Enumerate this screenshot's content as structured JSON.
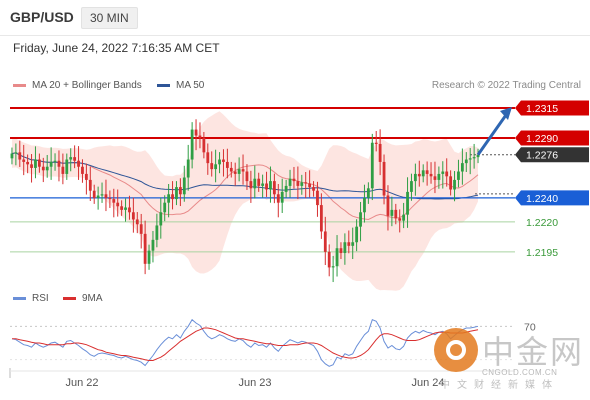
{
  "header": {
    "symbol": "GBP/USD",
    "timeframe": "30 MIN",
    "datetime": "Friday, June 24, 2022 7:16:35 AM CET"
  },
  "legend": {
    "ma20_bb": "MA 20 + Bollinger Bands",
    "ma50": "MA 50",
    "credit": "Research © 2022 Trading Central",
    "rsi": "RSI",
    "nine_ma": "9MA"
  },
  "colors": {
    "ma20": "#e88a8a",
    "ma50": "#2e5597",
    "bollinger_fill": "#fde2de",
    "resistance": "#d40000",
    "support": "#1a5fd6",
    "target": "#3a9a3a",
    "current_price": "#333333",
    "rsi_line": "#6a8fd8",
    "nine_ma_line": "#d92f2f",
    "arrow": "#2e66b2"
  },
  "watermark": {
    "big": "中金网",
    "url": "CNGOLD.COM.CN",
    "cn": "中文财经新媒体"
  },
  "chart_data": [
    {
      "type": "candlestick",
      "title": "GBP/USD",
      "timeframe": "30 MIN",
      "ylim": [
        1.2169,
        1.2325
      ],
      "xlabel": "",
      "ylabel": "",
      "x_ticks": [
        "Jun 22",
        "Jun 23",
        "Jun 24"
      ],
      "levels": [
        {
          "label": "1.2315",
          "value": 1.2315,
          "kind": "resistance"
        },
        {
          "label": "1.2290",
          "value": 1.229,
          "kind": "resistance"
        },
        {
          "label": "1.2276",
          "value": 1.2276,
          "kind": "current"
        },
        {
          "label": "1.2240",
          "value": 1.224,
          "kind": "pivot"
        },
        {
          "label": "1.2220",
          "value": 1.222,
          "kind": "target"
        },
        {
          "label": "1.2195",
          "value": 1.2195,
          "kind": "target"
        }
      ],
      "arrow": {
        "from": 1.2276,
        "to": 1.2315,
        "direction": "up"
      },
      "close": [
        1.2277,
        1.2278,
        1.2272,
        1.227,
        1.2268,
        1.2265,
        1.2272,
        1.2266,
        1.2263,
        1.2266,
        1.227,
        1.2271,
        1.2266,
        1.226,
        1.2272,
        1.2274,
        1.2271,
        1.2266,
        1.226,
        1.2255,
        1.2246,
        1.224,
        1.2242,
        1.2243,
        1.224,
        1.2239,
        1.2236,
        1.2233,
        1.223,
        1.2232,
        1.2228,
        1.2222,
        1.2218,
        1.221,
        1.2185,
        1.2196,
        1.2205,
        1.2217,
        1.2228,
        1.2236,
        1.2243,
        1.2239,
        1.2249,
        1.2243,
        1.2257,
        1.2272,
        1.2297,
        1.2292,
        1.229,
        1.2278,
        1.2269,
        1.2264,
        1.2268,
        1.2272,
        1.227,
        1.2265,
        1.2262,
        1.226,
        1.2264,
        1.2262,
        1.2254,
        1.2248,
        1.2256,
        1.225,
        1.2252,
        1.2247,
        1.2254,
        1.2243,
        1.2236,
        1.2245,
        1.225,
        1.2256,
        1.2254,
        1.225,
        1.2253,
        1.2252,
        1.2249,
        1.2246,
        1.2234,
        1.2212,
        1.2195,
        1.2182,
        1.2183,
        1.2198,
        1.2194,
        1.2203,
        1.22,
        1.2203,
        1.2216,
        1.2228,
        1.224,
        1.2248,
        1.2286,
        1.2285,
        1.227,
        1.2242,
        1.2225,
        1.223,
        1.2223,
        1.2221,
        1.2226,
        1.2245,
        1.2254,
        1.226,
        1.2258,
        1.2263,
        1.226,
        1.2258,
        1.2255,
        1.226,
        1.2262,
        1.2258,
        1.2247,
        1.2255,
        1.2262,
        1.2269,
        1.2272,
        1.2273,
        1.2274,
        1.2276
      ],
      "rsi": {
        "ylim": [
          20,
          80
        ],
        "levels": [
          {
            "label": "70",
            "value": 70
          }
        ],
        "series": [
          {
            "name": "RSI",
            "values": [
              55,
              54,
              51,
              48,
              47,
              45,
              50,
              47,
              45,
              47,
              50,
              51,
              48,
              45,
              52,
              53,
              50,
              47,
              43,
              40,
              36,
              34,
              37,
              38,
              37,
              36,
              35,
              33,
              32,
              34,
              32,
              30,
              29,
              27,
              23,
              29,
              35,
              42,
              48,
              53,
              57,
              55,
              60,
              56,
              64,
              70,
              78,
              74,
              71,
              64,
              58,
              55,
              57,
              60,
              58,
              55,
              53,
              52,
              55,
              53,
              48,
              45,
              50,
              47,
              48,
              45,
              50,
              44,
              40,
              46,
              50,
              54,
              52,
              50,
              52,
              51,
              49,
              47,
              40,
              30,
              25,
              22,
              24,
              33,
              31,
              37,
              35,
              37,
              46,
              53,
              60,
              64,
              78,
              76,
              68,
              52,
              44,
              47,
              43,
              42,
              46,
              56,
              61,
              64,
              62,
              65,
              63,
              62,
              60,
              63,
              64,
              61,
              55,
              59,
              63,
              66,
              68,
              68,
              69,
              70
            ]
          },
          {
            "name": "9MA",
            "values": [
              55,
              55,
              54,
              53,
              52,
              51,
              50,
              50,
              49,
              48,
              48,
              48,
              48,
              48,
              49,
              49,
              50,
              50,
              49,
              48,
              46,
              44,
              42,
              41,
              39,
              38,
              37,
              36,
              35,
              35,
              34,
              33,
              32,
              31,
              30,
              29,
              29,
              31,
              33,
              36,
              40,
              44,
              48,
              52,
              55,
              58,
              61,
              64,
              66,
              68,
              68,
              67,
              66,
              64,
              62,
              60,
              58,
              56,
              55,
              55,
              54,
              53,
              52,
              51,
              50,
              49,
              49,
              48,
              47,
              47,
              47,
              48,
              48,
              48,
              49,
              50,
              50,
              50,
              49,
              47,
              44,
              41,
              38,
              36,
              34,
              33,
              32,
              32,
              33,
              35,
              38,
              42,
              48,
              54,
              59,
              61,
              61,
              60,
              58,
              56,
              54,
              53,
              53,
              53,
              54,
              56,
              58,
              60,
              62,
              63,
              63,
              63,
              62,
              62,
              62,
              62,
              63,
              64,
              65,
              66
            ]
          }
        ]
      }
    }
  ]
}
